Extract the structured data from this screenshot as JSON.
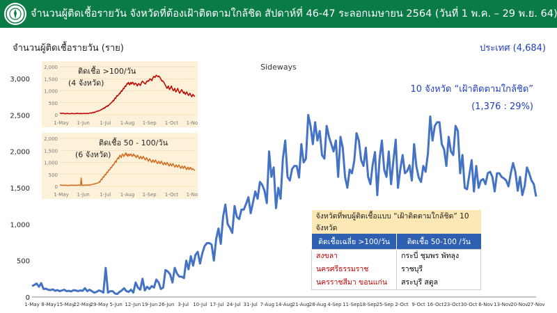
{
  "slide": {
    "title": "จำนวนผู้ติดเชื้อรายวัน จังหวัดที่ต้องเฝ้าติดตามใกล้ชิด สัปดาห์ที่ 46-47 ระลอกเมษายน 2564 (วันที่ 1 พ.ค. – 29 พ.ย. 64)",
    "subtitle": "จำนวนผู้ติดเชื้อรายวัน (ราย)",
    "country_total": "ประเทศ (4,684)",
    "header_color": "#0a7a46",
    "logo_icon": "ministry-of-public-health-emblem"
  },
  "chart_data": [
    {
      "type": "line",
      "title": "Sideways",
      "annotation": [
        "10 จังหวัด “เฝ้าติดตามใกล้ชิด”",
        "(1,376 : 29%)"
      ],
      "annotation_color": "#1f3fbf",
      "color": "#4472c4",
      "xlabel": "",
      "ylabel": "",
      "ylim": [
        0,
        3000
      ],
      "yticks": [
        0,
        500,
        1000,
        1500,
        2000,
        2500,
        3000
      ],
      "x_range": [
        "2021-05-01",
        "2021-11-29"
      ],
      "x_tick_labels": [
        "1-May",
        "8-May",
        "15-May",
        "22-May",
        "29-May",
        "5-Jun",
        "12-Jun",
        "19-Jun",
        "26-Jun",
        "3-Jul",
        "10-Jul",
        "17-Jul",
        "24-Jul",
        "31-Jul",
        "7-Aug",
        "14-Aug",
        "21-Aug",
        "28-Aug",
        "4-Sep",
        "11-Sep",
        "18-Sep",
        "25-Sep",
        "2-Oct",
        "9-Oct",
        "16-Oct",
        "23-Oct",
        "30-Oct",
        "6-Nov",
        "13-Nov",
        "20-Nov",
        "27-Nov"
      ],
      "grid": false,
      "values": [
        150,
        165,
        185,
        140,
        190,
        110,
        115,
        100,
        95,
        105,
        85,
        95,
        80,
        90,
        100,
        80,
        85,
        75,
        95,
        90,
        80,
        90,
        85,
        120,
        80,
        100,
        80,
        60,
        70,
        90,
        80,
        60,
        400,
        60,
        80,
        80,
        50,
        40,
        70,
        90,
        120,
        80,
        70,
        100,
        60,
        200,
        130,
        100,
        250,
        90,
        140,
        110,
        150,
        130,
        240,
        200,
        110,
        130,
        370,
        350,
        310,
        200,
        400,
        320,
        280,
        280,
        260,
        500,
        380,
        560,
        430,
        580,
        620,
        460,
        600,
        700,
        740,
        740,
        720,
        500,
        800,
        940,
        730,
        1100,
        1270,
        1000,
        950,
        880,
        1250,
        1100,
        1070,
        1200,
        1200,
        1280,
        1370,
        1150,
        1300,
        1450,
        1350,
        1580,
        1540,
        1460,
        1290,
        2000,
        1650,
        1780,
        1220,
        1500,
        1350,
        1900,
        2150,
        1650,
        1600,
        1760,
        1800,
        1800,
        1640,
        2100,
        1850,
        1900,
        2500,
        2350,
        2100,
        2400,
        2150,
        2280,
        1950,
        1900,
        2350,
        2200,
        2100,
        2000,
        2150,
        1650,
        2200,
        2050,
        1650,
        1500,
        1750,
        1700,
        1870,
        2250,
        2150,
        1880,
        1800,
        2050,
        1650,
        1550,
        1820,
        1990,
        1400,
        1900,
        2150,
        1750,
        1650,
        2000,
        1550,
        1870,
        2160,
        1500,
        1750,
        1950,
        1700,
        1730,
        1810,
        1600,
        2100,
        1790,
        1640,
        1580,
        1800,
        1720,
        1970,
        2480,
        2150,
        2350,
        2400,
        2400,
        2100,
        2030,
        1800,
        2200,
        2000,
        1950,
        2350,
        2280,
        1700,
        1950,
        1500,
        1480,
        1680,
        1880,
        1450,
        1800,
        1500,
        1600,
        1620,
        1550,
        1700,
        1720,
        1650,
        1450,
        1700,
        1700,
        1650,
        1630,
        1600,
        1520,
        1700,
        1840,
        1720,
        1460,
        1650,
        1400,
        1520,
        1780,
        1700,
        1600,
        1550,
        1380
      ]
    },
    {
      "type": "line",
      "title": "ติดเชื้อ >100/วัน",
      "annotation": "(4 จังหวัด)",
      "color": "#c00000",
      "ylim": [
        0,
        2000
      ],
      "yticks": [
        0,
        500,
        1000,
        1500,
        2000
      ],
      "x_tick_labels": [
        "1-May",
        "1-Jun",
        "1-Jul",
        "1-Aug",
        "1-Sep",
        "1-Oct",
        "1-Nov"
      ],
      "values": [
        60,
        70,
        55,
        50,
        65,
        70,
        55,
        45,
        50,
        40,
        45,
        55,
        60,
        50,
        45,
        40,
        50,
        45,
        55,
        60,
        45,
        55,
        50,
        40,
        45,
        55,
        60,
        50,
        65,
        55,
        45,
        50,
        55,
        60,
        40,
        45,
        50,
        55,
        60,
        45,
        50,
        55,
        60,
        65,
        50,
        45,
        60,
        70,
        80,
        75,
        60,
        90,
        100,
        85,
        110,
        95,
        120,
        130,
        140,
        150,
        160,
        150,
        170,
        180,
        200,
        220,
        210,
        240,
        260,
        250,
        300,
        280,
        320,
        350,
        340,
        380,
        360,
        400,
        420,
        450,
        480,
        500,
        520,
        550,
        600,
        580,
        650,
        700,
        680,
        750,
        800,
        780,
        820,
        850,
        900,
        880,
        950,
        1000,
        980,
        1050,
        1100,
        1080,
        1150,
        1200,
        1180,
        1250,
        1300,
        1280,
        1350,
        1300,
        1250,
        1300,
        1350,
        1280,
        1320,
        1360,
        1300,
        1250,
        1280,
        1320,
        1300,
        1260,
        1200,
        1250,
        1300,
        1280,
        1250,
        1220,
        1300,
        1350,
        1400,
        1380,
        1350,
        1320,
        1300,
        1280,
        1350,
        1400,
        1380,
        1420,
        1400,
        1450,
        1500,
        1480,
        1450,
        1420,
        1500,
        1550,
        1600,
        1580,
        1550,
        1600,
        1650,
        1620,
        1600,
        1580,
        1620,
        1580,
        1550,
        1500,
        1450,
        1400,
        1420,
        1380,
        1350,
        1300,
        1250,
        1200,
        1150,
        1100,
        1150,
        1200,
        1100,
        1050,
        1100,
        1150,
        1200,
        1100,
        1050,
        1000,
        1050,
        1100,
        1000,
        950,
        1000,
        1050,
        1100,
        1000,
        950,
        900,
        950,
        1000,
        1050,
        1000,
        950,
        900,
        950,
        900,
        850,
        900,
        950,
        900,
        850,
        800,
        850,
        900,
        850,
        800,
        750,
        800,
        850,
        800,
        780,
        760
      ]
    },
    {
      "type": "line",
      "title": "ติดเชื้อ 50 - 100/วัน",
      "annotation": "(6 จังหวัด)",
      "color": "#d2691e",
      "ylim": [
        0,
        2000
      ],
      "yticks": [
        0,
        500,
        1000,
        1500,
        2000
      ],
      "x_tick_labels": [
        "1-May",
        "1-Jun",
        "1-Jul",
        "1-Aug",
        "1-Sep",
        "1-Oct",
        "1-Nov"
      ],
      "values": [
        50,
        60,
        55,
        45,
        50,
        40,
        45,
        50,
        55,
        40,
        45,
        50,
        40,
        35,
        45,
        50,
        40,
        45,
        50,
        55,
        45,
        40,
        45,
        50,
        55,
        45,
        40,
        50,
        55,
        60,
        50,
        45,
        40,
        350,
        60,
        40,
        45,
        50,
        55,
        60,
        45,
        50,
        55,
        60,
        65,
        50,
        55,
        60,
        70,
        75,
        80,
        90,
        100,
        95,
        110,
        120,
        115,
        130,
        140,
        150,
        160,
        200,
        180,
        250,
        300,
        280,
        350,
        400,
        380,
        450,
        500,
        480,
        550,
        600,
        580,
        650,
        700,
        680,
        750,
        800,
        780,
        850,
        900,
        880,
        950,
        1000,
        1050,
        1000,
        1100,
        1150,
        1200,
        1150,
        1250,
        1300,
        1250,
        1200,
        1300,
        1350,
        1300,
        1250,
        1300,
        1350,
        1400,
        1300,
        1350,
        1250,
        1300,
        1350,
        1280,
        1320,
        1350,
        1300,
        1250,
        1300,
        1350,
        1280,
        1300,
        1250,
        1200,
        1250,
        1300,
        1250,
        1200,
        1150,
        1200,
        1250,
        1200,
        1150,
        1200,
        1250,
        1200,
        1150,
        1100,
        1150,
        1200,
        1150,
        1100,
        1050,
        1100,
        1150,
        1100,
        1050,
        1000,
        1050,
        1100,
        1050,
        1000,
        1050,
        1100,
        1050,
        1000,
        950,
        1000,
        1050,
        1000,
        950,
        1000,
        1050,
        1000,
        950,
        900,
        950,
        1000,
        950,
        900,
        950,
        1000,
        950,
        900,
        850,
        900,
        950,
        900,
        850,
        900,
        950,
        900,
        850,
        800,
        850,
        900,
        850,
        800,
        850,
        900,
        850,
        800,
        750,
        800,
        850,
        800,
        750,
        800,
        850,
        800,
        750,
        700,
        750,
        800,
        750,
        700,
        750,
        800,
        750,
        700,
        720,
        740,
        700,
        680,
        660
      ]
    }
  ],
  "table": {
    "title": "จังหวัดที่พบผู้ติดเชื้อแบบ “เฝ้าติดตามใกล้ชิด” 10 จังหวัด",
    "col1_header": "ติดเชื้อเฉลี่ย >100/วัน",
    "col2_header": "ติดเชื้อ 50-100 /วัน",
    "col1_line1": "สงขลา นครศรีธรรมราช",
    "col1_line2": "นครราชสีมา ขอนแก่น",
    "col2_line1": "กระบี่ ชุมพร พัทลุง ราชบุรี",
    "col2_line2": "สระบุรี สตูล"
  }
}
